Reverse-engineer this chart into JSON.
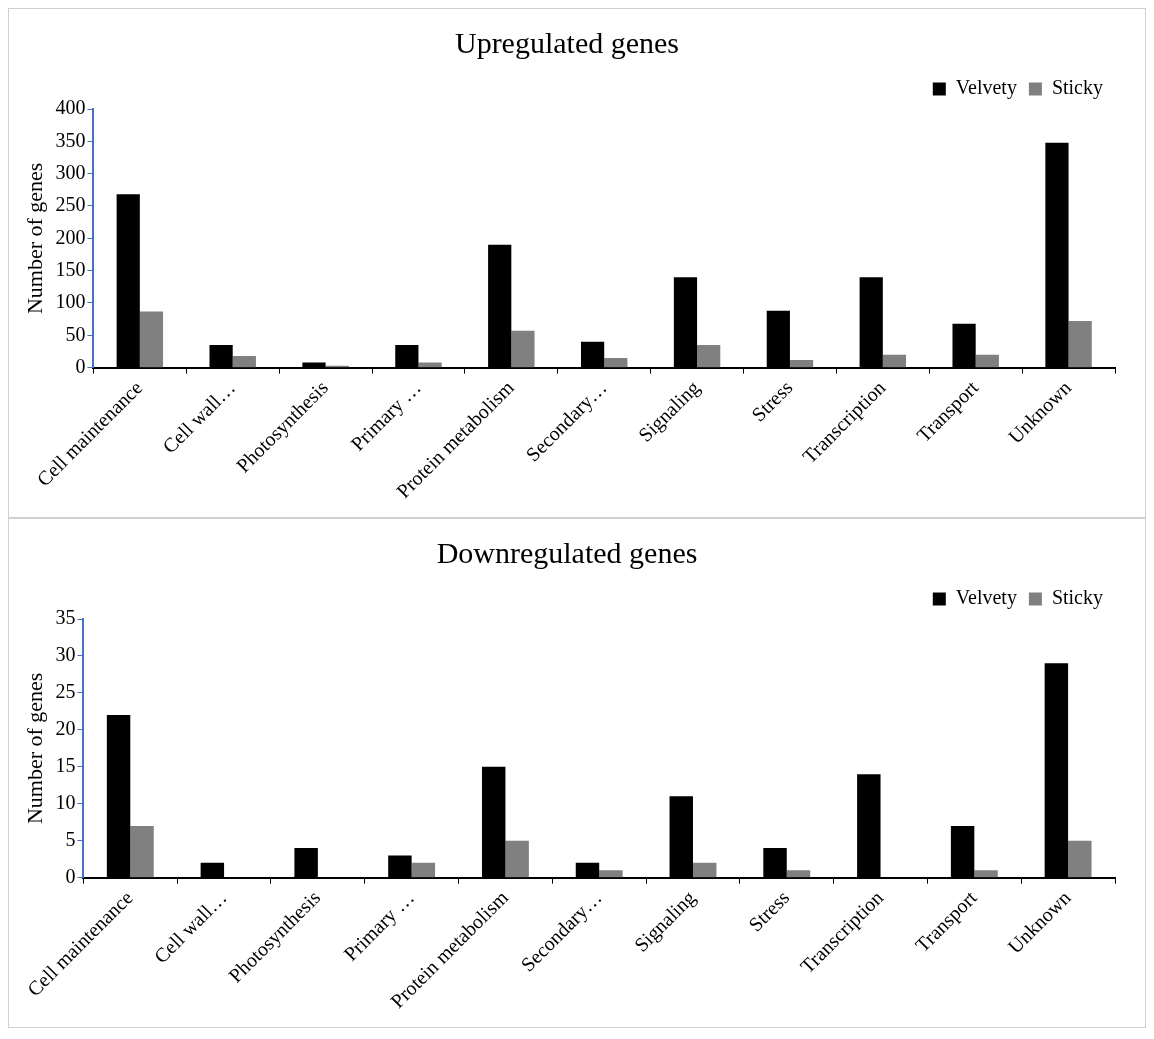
{
  "chart_data": [
    {
      "type": "bar",
      "title": "Upregulated genes",
      "ylabel": "Number of genes",
      "categories": [
        "Cell maintenance",
        "Cell wall…",
        "Photosynthesis",
        "Primary …",
        "Protein metabolism",
        "Secondary…",
        "Signaling",
        "Stress",
        "Transcription",
        "Transport",
        "Unknown"
      ],
      "series": [
        {
          "name": "Velvety",
          "color": "#000000",
          "values": [
            268,
            35,
            8,
            35,
            190,
            40,
            140,
            88,
            140,
            68,
            348
          ]
        },
        {
          "name": "Sticky",
          "color": "#808080",
          "values": [
            87,
            18,
            3,
            8,
            57,
            15,
            35,
            12,
            20,
            20,
            72
          ]
        }
      ],
      "ylim": [
        0,
        400
      ],
      "yticks": [
        0,
        50,
        100,
        150,
        200,
        250,
        300,
        350,
        400
      ],
      "grid": false,
      "legend": "top right"
    },
    {
      "type": "bar",
      "title": "Downregulated genes",
      "ylabel": "Number of genes",
      "categories": [
        "Cell maintenance",
        "Cell wall…",
        "Photosynthesis",
        "Primary …",
        "Protein metabolism",
        "Secondary…",
        "Signaling",
        "Stress",
        "Transcription",
        "Transport",
        "Unknown"
      ],
      "series": [
        {
          "name": "Velvety",
          "color": "#000000",
          "values": [
            22,
            2,
            4,
            3,
            15,
            2,
            11,
            4,
            14,
            7,
            29
          ]
        },
        {
          "name": "Sticky",
          "color": "#808080",
          "values": [
            7,
            0,
            0,
            2,
            5,
            1,
            2,
            1,
            0,
            1,
            5
          ]
        }
      ],
      "ylim": [
        0,
        35
      ],
      "yticks": [
        0,
        5,
        10,
        15,
        20,
        25,
        30,
        35
      ],
      "grid": false,
      "legend": "top right"
    }
  ]
}
